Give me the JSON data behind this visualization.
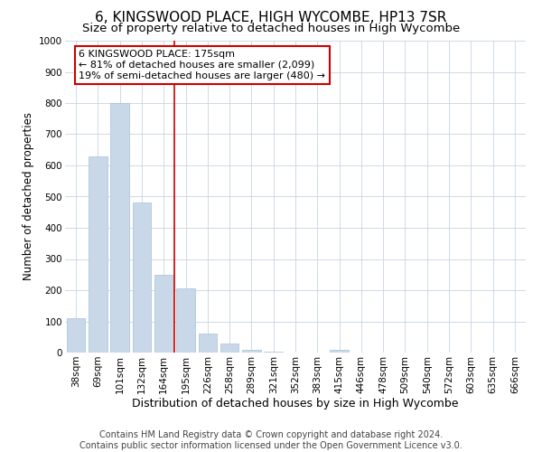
{
  "title1": "6, KINGSWOOD PLACE, HIGH WYCOMBE, HP13 7SR",
  "title2": "Size of property relative to detached houses in High Wycombe",
  "xlabel": "Distribution of detached houses by size in High Wycombe",
  "ylabel": "Number of detached properties",
  "categories": [
    "38sqm",
    "69sqm",
    "101sqm",
    "132sqm",
    "164sqm",
    "195sqm",
    "226sqm",
    "258sqm",
    "289sqm",
    "321sqm",
    "352sqm",
    "383sqm",
    "415sqm",
    "446sqm",
    "478sqm",
    "509sqm",
    "540sqm",
    "572sqm",
    "603sqm",
    "635sqm",
    "666sqm"
  ],
  "values": [
    110,
    630,
    800,
    480,
    250,
    205,
    60,
    30,
    10,
    2,
    1,
    1,
    10,
    0,
    0,
    0,
    0,
    0,
    0,
    0,
    0
  ],
  "bar_color": "#c8d8e8",
  "bar_edge_color": "#a8c0d8",
  "vline_color": "#cc0000",
  "vline_x": 4.5,
  "ylim": [
    0,
    1000
  ],
  "yticks": [
    0,
    100,
    200,
    300,
    400,
    500,
    600,
    700,
    800,
    900,
    1000
  ],
  "annotation_title": "6 KINGSWOOD PLACE: 175sqm",
  "annotation_line1": "← 81% of detached houses are smaller (2,099)",
  "annotation_line2": "19% of semi-detached houses are larger (480) →",
  "annotation_box_color": "#ffffff",
  "annotation_border_color": "#cc0000",
  "footer1": "Contains HM Land Registry data © Crown copyright and database right 2024.",
  "footer2": "Contains public sector information licensed under the Open Government Licence v3.0.",
  "background_color": "#ffffff",
  "grid_color": "#c8d4e0",
  "title1_fontsize": 11,
  "title2_fontsize": 9.5,
  "xlabel_fontsize": 9,
  "ylabel_fontsize": 8.5,
  "tick_fontsize": 7.5,
  "footer_fontsize": 7,
  "annotation_fontsize": 8
}
